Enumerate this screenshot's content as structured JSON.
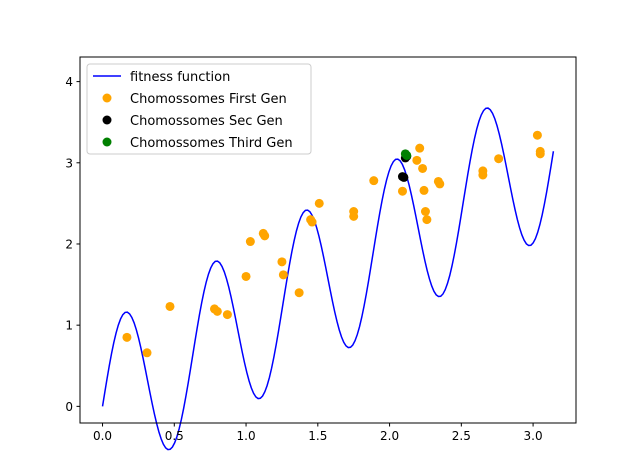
{
  "chart_data": {
    "type": "scatter",
    "title": "",
    "xlabel": "",
    "ylabel": "",
    "xlim": [
      -0.157,
      3.299
    ],
    "ylim": [
      -0.205,
      4.303
    ],
    "grid": false,
    "legend_position": "top-left",
    "x_ticks": [
      0.0,
      0.5,
      1.0,
      1.5,
      2.0,
      2.5,
      3.0
    ],
    "x_tick_labels": [
      "0.0",
      "0.5",
      "1.0",
      "1.5",
      "2.0",
      "2.5",
      "3.0"
    ],
    "y_ticks": [
      0,
      1,
      2,
      3,
      4
    ],
    "y_tick_labels": [
      "0",
      "1",
      "2",
      "3",
      "4"
    ],
    "line_series": {
      "name": "fitness function",
      "color": "#0000ff",
      "x_range": [
        0,
        3.1416
      ],
      "formula": "x + sin(10x)",
      "samples": 201
    },
    "series": [
      {
        "name": "Chomossomes First Gen",
        "color": "#ffa500",
        "points": [
          [
            0.17,
            0.85
          ],
          [
            0.31,
            0.66
          ],
          [
            0.47,
            1.23
          ],
          [
            0.78,
            1.2
          ],
          [
            0.8,
            1.17
          ],
          [
            0.87,
            1.13
          ],
          [
            1.0,
            1.6
          ],
          [
            1.03,
            2.03
          ],
          [
            1.12,
            2.13
          ],
          [
            1.13,
            2.1
          ],
          [
            1.25,
            1.78
          ],
          [
            1.26,
            1.62
          ],
          [
            1.37,
            1.4
          ],
          [
            1.45,
            2.3
          ],
          [
            1.46,
            2.27
          ],
          [
            1.51,
            2.5
          ],
          [
            1.75,
            2.4
          ],
          [
            1.75,
            2.34
          ],
          [
            1.89,
            2.78
          ],
          [
            2.09,
            2.65
          ],
          [
            2.19,
            3.03
          ],
          [
            2.21,
            3.18
          ],
          [
            2.23,
            2.93
          ],
          [
            2.24,
            2.66
          ],
          [
            2.25,
            2.4
          ],
          [
            2.26,
            2.3
          ],
          [
            2.34,
            2.77
          ],
          [
            2.35,
            2.74
          ],
          [
            2.65,
            2.9
          ],
          [
            2.65,
            2.85
          ],
          [
            2.76,
            3.05
          ],
          [
            3.03,
            3.34
          ],
          [
            3.05,
            3.11
          ],
          [
            3.05,
            3.14
          ]
        ]
      },
      {
        "name": "Chomossomes Sec Gen",
        "color": "#000000",
        "points": [
          [
            2.09,
            2.83
          ],
          [
            2.1,
            2.82
          ],
          [
            2.11,
            3.06
          ],
          [
            2.12,
            3.08
          ]
        ]
      },
      {
        "name": "Chomossomes Third Gen",
        "color": "#008000",
        "points": [
          [
            2.11,
            3.11
          ],
          [
            2.12,
            3.09
          ]
        ]
      }
    ]
  }
}
